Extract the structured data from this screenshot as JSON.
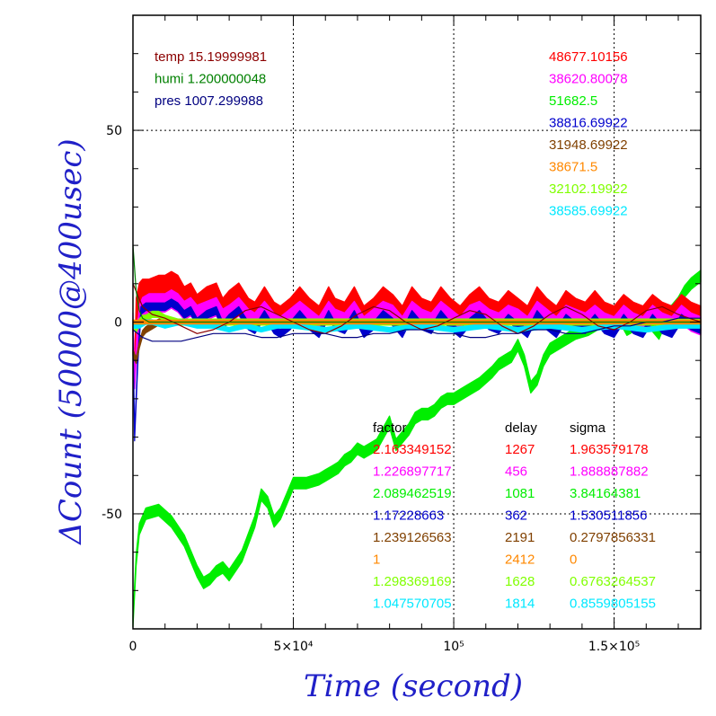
{
  "colors": {
    "red": "#ff0000",
    "magenta": "#ff00ff",
    "green": "#00ee00",
    "blue": "#0000cc",
    "brown": "#804000",
    "orange": "#ff8800",
    "lime": "#80ff00",
    "cyan": "#00e8ff",
    "darkred": "#8b0000",
    "darkgreen": "#008000",
    "navy": "#000080",
    "axis_title": "#2020c8"
  },
  "chart_data": {
    "type": "line",
    "xlabel": "Time (second)",
    "ylabel": "ΔCount (50000@400usec)",
    "xlim": [
      0,
      177000
    ],
    "ylim": [
      -80,
      80
    ],
    "grid": true,
    "x_ticks": [
      {
        "value": 0,
        "label": "0"
      },
      {
        "value": 50000,
        "label": "5×10⁴"
      },
      {
        "value": 100000,
        "label": "10⁵"
      },
      {
        "value": 150000,
        "label": "1.5×10⁵"
      }
    ],
    "y_ticks": [
      {
        "value": -50,
        "label": "-50"
      },
      {
        "value": 0,
        "label": "0"
      },
      {
        "value": 50,
        "label": "50"
      }
    ],
    "env": [
      {
        "label": "temp 15.19999981",
        "color": "#8b0000"
      },
      {
        "label": "humi 1.200000048",
        "color": "#008000"
      },
      {
        "label": "pres 1007.299988",
        "color": "#000080"
      }
    ],
    "means": [
      {
        "value": "48677.10156",
        "color": "#ff0000"
      },
      {
        "value": "38620.80078",
        "color": "#ff00ff"
      },
      {
        "value": "51682.5",
        "color": "#00ee00"
      },
      {
        "value": "38816.69922",
        "color": "#0000cc"
      },
      {
        "value": "31948.69922",
        "color": "#804000"
      },
      {
        "value": "38671.5",
        "color": "#ff8800"
      },
      {
        "value": "32102.19922",
        "color": "#80ff00"
      },
      {
        "value": "38585.69922",
        "color": "#00e8ff"
      }
    ],
    "stats_headers": [
      "factor",
      "delay",
      "sigma"
    ],
    "stats": [
      {
        "factor": "2.163349152",
        "delay": "1267",
        "sigma": "1.963579178",
        "color": "#ff0000"
      },
      {
        "factor": "1.226897717",
        "delay": "456",
        "sigma": "1.888887882",
        "color": "#ff00ff"
      },
      {
        "factor": "2.089462519",
        "delay": "1081",
        "sigma": "3.84164381",
        "color": "#00ee00"
      },
      {
        "factor": "1.17228663",
        "delay": "362",
        "sigma": "1.530511856",
        "color": "#0000cc"
      },
      {
        "factor": "1.239126563",
        "delay": "2191",
        "sigma": "0.2797856331",
        "color": "#804000"
      },
      {
        "factor": "1",
        "delay": "2412",
        "sigma": "0",
        "color": "#ff8800"
      },
      {
        "factor": "1.298369169",
        "delay": "1628",
        "sigma": "0.6763264537",
        "color": "#80ff00"
      },
      {
        "factor": "1.047570705",
        "delay": "1814",
        "sigma": "0.8559805155",
        "color": "#00e8ff"
      }
    ],
    "series": [
      {
        "color": "#00ee00",
        "band": 1.5,
        "x": [
          0,
          1000,
          2000,
          4000,
          8000,
          12000,
          16000,
          20000,
          22000,
          24000,
          26000,
          28000,
          30000,
          34000,
          38000,
          40000,
          42000,
          44000,
          46000,
          48000,
          50000,
          54000,
          58000,
          60000,
          62000,
          64000,
          66000,
          68000,
          70000,
          72000,
          74000,
          76000,
          78000,
          80000,
          82000,
          84000,
          86000,
          88000,
          90000,
          92000,
          94000,
          96000,
          98000,
          100000,
          104000,
          108000,
          112000,
          114000,
          116000,
          118000,
          120000,
          122000,
          124000,
          126000,
          128000,
          130000,
          134000,
          138000,
          142000,
          146000,
          150000,
          152000,
          154000,
          156000,
          158000,
          160000,
          162000,
          164000,
          166000,
          168000,
          170000,
          172000,
          174000,
          177000
        ],
        "y": [
          -78,
          -62,
          -54,
          -50,
          -49,
          -52,
          -57,
          -65,
          -68,
          -67,
          -65,
          -64,
          -66,
          -61,
          -52,
          -45,
          -47,
          -52,
          -50,
          -46,
          -42,
          -42,
          -41,
          -40,
          -39,
          -38,
          -36,
          -35,
          -33,
          -34,
          -33,
          -32,
          -29,
          -26,
          -32,
          -30,
          -28,
          -25,
          -24,
          -24,
          -23,
          -21,
          -20,
          -20,
          -18,
          -16,
          -13,
          -11,
          -10,
          -9,
          -6,
          -10,
          -17,
          -15,
          -10,
          -7,
          -5,
          -3,
          -2,
          0,
          -1,
          1,
          -2,
          -1,
          1,
          0,
          -1,
          -3,
          1,
          3,
          5,
          8,
          10,
          12
        ]
      },
      {
        "color": "#ff0000",
        "band": 3.2,
        "x": [
          0,
          500,
          1000,
          2000,
          3000,
          5000,
          8000,
          10000,
          12000,
          14000,
          16000,
          18000,
          20000,
          23000,
          26000,
          28000,
          30000,
          33000,
          36000,
          38000,
          41000,
          44000,
          46000,
          49000,
          52000,
          55000,
          58000,
          61000,
          63000,
          66000,
          69000,
          72000,
          75000,
          78000,
          81000,
          84000,
          87000,
          90000,
          93000,
          96000,
          99000,
          102000,
          105000,
          108000,
          111000,
          114000,
          117000,
          120000,
          123000,
          126000,
          129000,
          132000,
          135000,
          138000,
          141000,
          144000,
          147000,
          150000,
          153000,
          156000,
          159000,
          162000,
          165000,
          168000,
          171000,
          174000,
          177000
        ],
        "y": [
          -5,
          -14,
          3,
          7,
          8,
          8,
          9,
          9,
          10,
          9,
          6,
          7,
          4,
          6,
          7,
          3,
          5,
          7,
          3,
          2,
          6,
          2,
          1,
          3,
          6,
          3,
          1,
          6,
          3,
          2,
          6,
          1,
          3,
          6,
          4,
          1,
          6,
          3,
          2,
          6,
          3,
          1,
          4,
          6,
          3,
          2,
          5,
          3,
          1,
          6,
          3,
          1,
          5,
          3,
          2,
          5,
          2,
          1,
          4,
          2,
          1,
          4,
          2,
          1,
          4,
          2,
          1
        ]
      },
      {
        "color": "#ff00ff",
        "band": 2.4,
        "x": [
          0,
          500,
          1000,
          2000,
          3000,
          5000,
          8000,
          10000,
          12000,
          14000,
          16000,
          18000,
          20000,
          23000,
          26000,
          28000,
          30000,
          33000,
          36000,
          38000,
          41000,
          44000,
          46000,
          49000,
          52000,
          55000,
          58000,
          61000,
          63000,
          66000,
          69000,
          72000,
          75000,
          78000,
          81000,
          84000,
          87000,
          90000,
          93000,
          96000,
          99000,
          102000,
          105000,
          108000,
          111000,
          114000,
          117000,
          120000,
          123000,
          126000,
          129000,
          132000,
          135000,
          138000,
          141000,
          144000,
          147000,
          150000,
          153000,
          156000,
          159000,
          162000,
          165000,
          168000,
          171000,
          174000,
          177000
        ],
        "y": [
          0,
          -15,
          -8,
          2,
          4,
          5,
          5,
          5,
          6,
          5,
          3,
          4,
          2,
          3,
          4,
          1,
          2,
          4,
          1,
          0,
          3,
          0,
          -1,
          1,
          3,
          1,
          -1,
          3,
          1,
          0,
          3,
          -1,
          1,
          3,
          2,
          -1,
          3,
          1,
          0,
          3,
          1,
          -1,
          2,
          3,
          1,
          0,
          2,
          1,
          -1,
          3,
          1,
          -1,
          2,
          1,
          0,
          2,
          0,
          -1,
          2,
          0,
          -1,
          2,
          0,
          -1,
          2,
          0,
          -1
        ]
      },
      {
        "color": "#0000cc",
        "band": 1.0,
        "x": [
          0,
          500,
          1000,
          1500,
          2500,
          4000,
          7000,
          10000,
          12000,
          14000,
          16000,
          18000,
          20000,
          23000,
          26000,
          28000,
          30000,
          33000,
          36000,
          38000,
          41000,
          44000,
          46000,
          49000,
          52000,
          55000,
          58000,
          61000,
          63000,
          66000,
          69000,
          72000,
          75000,
          78000,
          81000,
          84000,
          87000,
          90000,
          93000,
          96000,
          99000,
          102000,
          105000,
          108000,
          111000,
          114000,
          117000,
          120000,
          123000,
          126000,
          129000,
          132000,
          135000,
          138000,
          141000,
          144000,
          147000,
          150000,
          153000,
          156000,
          159000,
          162000,
          165000,
          168000,
          171000,
          174000,
          177000
        ],
        "y": [
          -2,
          -30,
          -20,
          -10,
          3,
          4,
          4,
          4,
          5,
          4,
          2,
          3,
          0,
          2,
          3,
          -1,
          1,
          3,
          -1,
          -2,
          2,
          -2,
          -3,
          -1,
          2,
          -1,
          -3,
          2,
          -1,
          -2,
          2,
          -3,
          -1,
          2,
          0,
          -3,
          2,
          -1,
          -2,
          2,
          -1,
          -3,
          0,
          2,
          -1,
          -2,
          1,
          -1,
          -3,
          2,
          -1,
          -3,
          1,
          -1,
          -2,
          1,
          -2,
          -3,
          1,
          -2,
          -3,
          1,
          -2,
          -3,
          1,
          -1,
          -2
        ]
      },
      {
        "color": "#804000",
        "band": 0.8,
        "x": [
          0,
          1000,
          2000,
          3000,
          4000,
          6000,
          8000,
          10000,
          14000,
          18000,
          25000,
          35000,
          50000,
          80000,
          120000,
          150000,
          177000
        ],
        "y": [
          -8,
          -10,
          -6,
          -3,
          -2,
          -1,
          0,
          0,
          0,
          0,
          0,
          0,
          0,
          0,
          0,
          0,
          0
        ]
      },
      {
        "color": "#80ff00",
        "band": 0.8,
        "x": [
          0,
          1000,
          2000,
          3000,
          4000,
          6000,
          8000,
          10000,
          14000,
          18000,
          25000,
          40000,
          60000,
          100000,
          150000,
          177000
        ],
        "y": [
          0,
          -2,
          0,
          1,
          1,
          2,
          2,
          1,
          0,
          0,
          0,
          0,
          0,
          0,
          0,
          0
        ]
      },
      {
        "color": "#00e8ff",
        "band": 0.6,
        "x": [
          0,
          2000,
          4000,
          6000,
          10000,
          15000,
          20000,
          25000,
          30000,
          35000,
          40000,
          45000,
          50000,
          60000,
          70000,
          80000,
          90000,
          100000,
          110000,
          120000,
          130000,
          140000,
          150000,
          160000,
          170000,
          177000
        ],
        "y": [
          -1,
          -1,
          0,
          0,
          -1,
          0,
          -1,
          -1,
          -2,
          -1,
          -2,
          -1,
          -1,
          -2,
          -1,
          -2,
          -1,
          -2,
          -1,
          -2,
          -1,
          -2,
          -1,
          -2,
          -1,
          -1
        ]
      },
      {
        "color": "#ff8800",
        "band": 0.5,
        "x": [
          0,
          177000
        ],
        "y": [
          0,
          0
        ]
      },
      {
        "color": "#8b0000",
        "band": 0,
        "x": [
          0,
          3000,
          6000,
          10000,
          15000,
          20000,
          25000,
          30000,
          35000,
          40000,
          45000,
          50000,
          55000,
          60000,
          65000,
          70000,
          75000,
          80000,
          85000,
          90000,
          95000,
          100000,
          105000,
          110000,
          115000,
          120000,
          125000,
          130000,
          135000,
          140000,
          145000,
          150000,
          155000,
          160000,
          165000,
          170000,
          177000
        ],
        "y": [
          10,
          4,
          2,
          1,
          -1,
          -3,
          -2,
          0,
          3,
          4,
          2,
          0,
          -2,
          -3,
          -1,
          2,
          4,
          3,
          0,
          -2,
          -1,
          1,
          3,
          2,
          -1,
          -3,
          -1,
          2,
          4,
          2,
          -1,
          -2,
          0,
          3,
          4,
          2,
          0
        ]
      },
      {
        "color": "#000080",
        "band": 0,
        "x": [
          0,
          3000,
          6000,
          10000,
          15000,
          20000,
          25000,
          30000,
          35000,
          40000,
          45000,
          50000,
          55000,
          60000,
          65000,
          70000,
          75000,
          80000,
          85000,
          90000,
          95000,
          100000,
          105000,
          110000,
          115000,
          120000,
          125000,
          130000,
          135000,
          140000,
          145000,
          150000,
          155000,
          160000,
          165000,
          170000,
          177000
        ],
        "y": [
          -2,
          -4,
          -5,
          -5,
          -5,
          -4,
          -3,
          -3,
          -3,
          -4,
          -4,
          -3,
          -3,
          -3,
          -4,
          -4,
          -3,
          -3,
          -2,
          -2,
          -3,
          -3,
          -4,
          -4,
          -3,
          -3,
          -2,
          -2,
          -3,
          -3,
          -2,
          -1,
          -1,
          0,
          0,
          1,
          1
        ]
      },
      {
        "color": "#008000",
        "band": 0,
        "x": [
          0,
          1000,
          2000,
          3000,
          5000,
          8000,
          12000,
          20000,
          40000,
          80000,
          120000,
          177000
        ],
        "y": [
          20,
          8,
          3,
          1,
          0,
          0,
          0,
          0,
          0,
          0,
          0,
          0
        ]
      }
    ]
  }
}
